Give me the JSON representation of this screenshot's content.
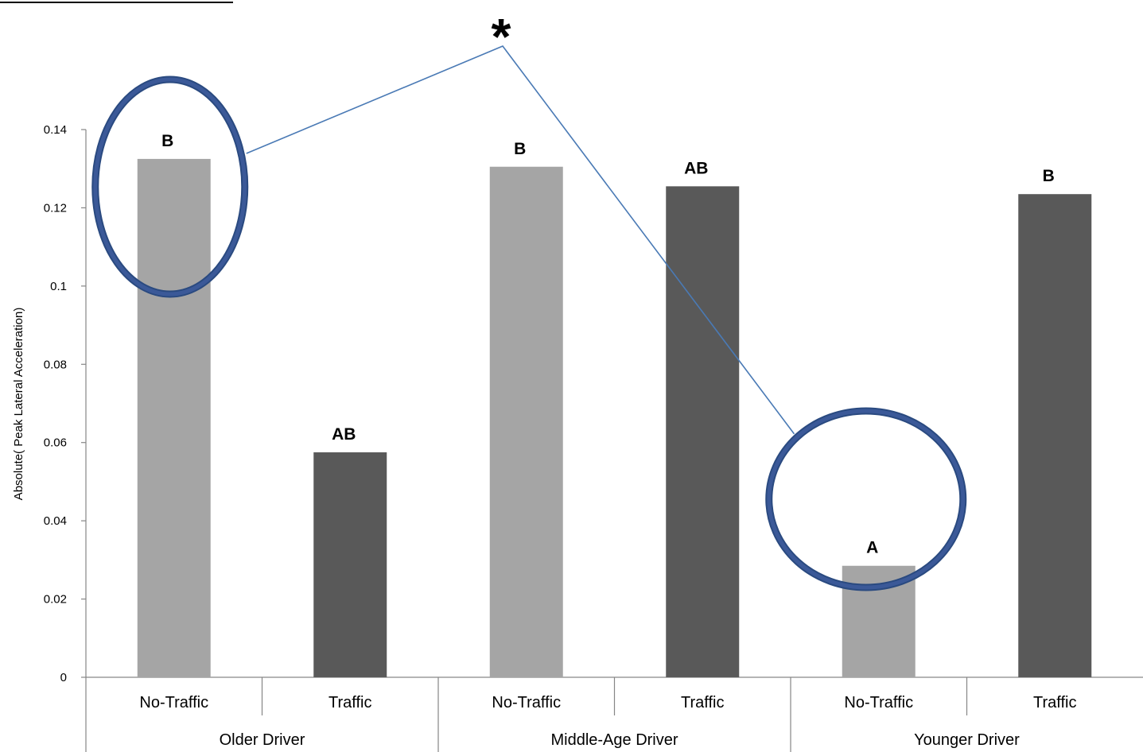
{
  "chart_data": {
    "type": "bar",
    "ylabel": "Absolute( Peak Lateral Acceleration)",
    "ylim": [
      0,
      0.14
    ],
    "yticks": [
      "0",
      "0.02",
      "0.04",
      "0.06",
      "0.08",
      "0.1",
      "0.12",
      "0.14"
    ],
    "groups": [
      "Older Driver",
      "Middle-Age Driver",
      "Younger Driver"
    ],
    "categories": [
      "No-Traffic",
      "Traffic",
      "No-Traffic",
      "Traffic",
      "No-Traffic",
      "Traffic"
    ],
    "values": [
      0.1325,
      0.0575,
      0.1305,
      0.1255,
      0.0285,
      0.1235
    ],
    "labels": [
      "B",
      "AB",
      "B",
      "AB",
      "A",
      "B"
    ],
    "bar_colors": [
      "#a5a5a5",
      "#595959",
      "#a5a5a5",
      "#595959",
      "#a5a5a5",
      "#595959"
    ],
    "annotation": {
      "symbol": "*",
      "ellipse_color": "#3b5998",
      "connector_color": "#4a7ab5",
      "connects_bars": [
        0,
        4
      ]
    }
  }
}
